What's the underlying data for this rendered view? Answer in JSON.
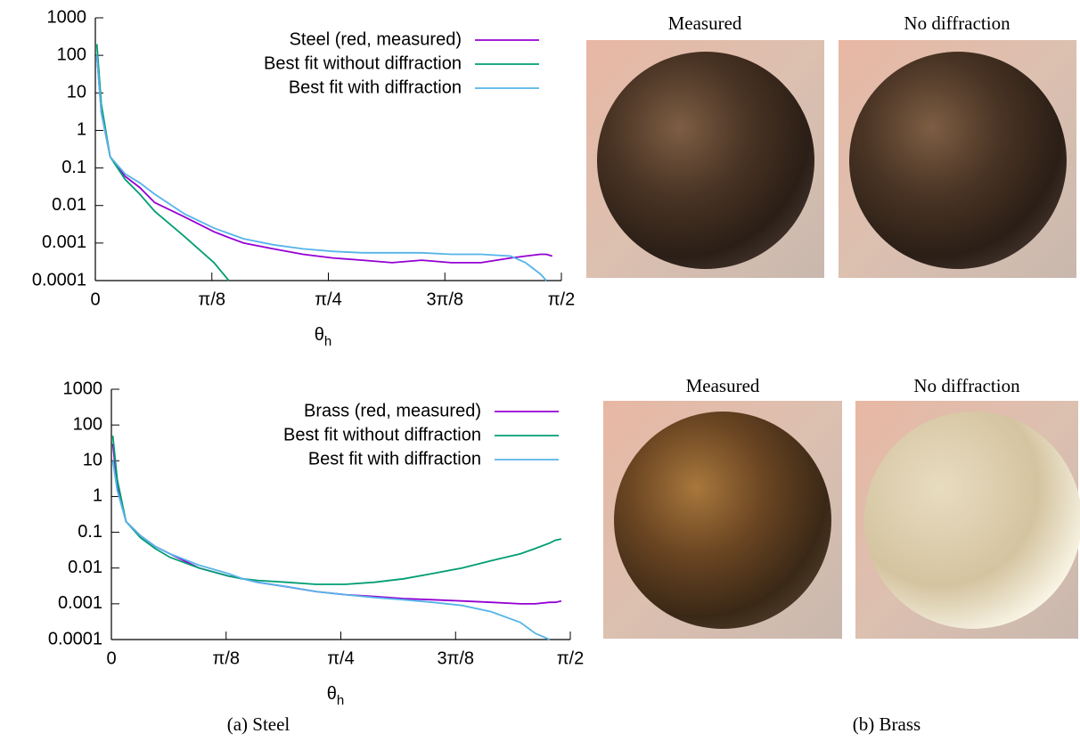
{
  "chart_data": [
    {
      "type": "line",
      "log_y": true,
      "legend": "top-right",
      "xlabel": "θ",
      "xlabel_sub": "h",
      "xlim": [
        0,
        1.5708
      ],
      "ylim": [
        0.0001,
        1000
      ],
      "xticks": [
        0,
        {
          "value": 0.3927,
          "label": "π/8"
        },
        {
          "value": 0.7854,
          "label": "π/4"
        },
        {
          "value": 1.1781,
          "label": "3π/8"
        },
        {
          "value": 1.5708,
          "label": "π/2"
        }
      ],
      "yticks": [
        0.0001,
        0.001,
        0.01,
        0.1,
        1,
        10,
        100,
        1000
      ],
      "x": [
        0.005,
        0.02,
        0.05,
        0.1,
        0.15,
        0.2,
        0.3,
        0.4,
        0.45,
        0.5,
        0.6,
        0.7,
        0.8,
        0.9,
        1.0,
        1.1,
        1.2,
        1.3,
        1.4,
        1.45,
        1.5,
        1.52,
        1.54
      ],
      "series": [
        {
          "name": "Steel (red, measured)",
          "color": "#9400d3",
          "values": [
            100,
            3,
            0.2,
            0.06,
            0.03,
            0.012,
            0.005,
            0.002,
            0.0014,
            0.001,
            0.0007,
            0.0005,
            0.0004,
            0.00035,
            0.0003,
            0.00035,
            0.0003,
            0.0003,
            0.0004,
            0.00045,
            0.0005,
            0.0005,
            0.00045
          ]
        },
        {
          "name": "Best fit without diffraction",
          "color": "#009e73",
          "values": [
            200,
            5,
            0.2,
            0.05,
            0.02,
            0.007,
            0.0015,
            0.0003,
            0.0001,
            null,
            null,
            null,
            null,
            null,
            null,
            null,
            null,
            null,
            null,
            null,
            null,
            null,
            null
          ]
        },
        {
          "name": "Best fit with diffraction",
          "color": "#56b4e9",
          "values": [
            100,
            3,
            0.2,
            0.07,
            0.04,
            0.02,
            0.006,
            0.0025,
            0.0018,
            0.0013,
            0.0009,
            0.0007,
            0.0006,
            0.00055,
            0.00055,
            0.00055,
            0.0005,
            0.0005,
            0.00045,
            0.0003,
            0.00015,
            0.0001,
            null
          ]
        }
      ]
    },
    {
      "type": "line",
      "log_y": true,
      "legend": "top-right",
      "xlabel": "θ",
      "xlabel_sub": "h",
      "xlim": [
        0,
        1.5708
      ],
      "ylim": [
        0.0001,
        1000
      ],
      "xticks": [
        0,
        {
          "value": 0.3927,
          "label": "π/8"
        },
        {
          "value": 0.7854,
          "label": "π/4"
        },
        {
          "value": 1.1781,
          "label": "3π/8"
        },
        {
          "value": 1.5708,
          "label": "π/2"
        }
      ],
      "yticks": [
        0.0001,
        0.001,
        0.01,
        0.1,
        1,
        10,
        100,
        1000
      ],
      "x": [
        0.005,
        0.02,
        0.05,
        0.1,
        0.15,
        0.2,
        0.3,
        0.4,
        0.45,
        0.5,
        0.6,
        0.7,
        0.8,
        0.9,
        1.0,
        1.1,
        1.2,
        1.3,
        1.4,
        1.45,
        1.5,
        1.52,
        1.54
      ],
      "series": [
        {
          "name": "Brass (red, measured)",
          "color": "#9400d3",
          "values": [
            30,
            2,
            0.2,
            0.08,
            0.04,
            0.025,
            0.01,
            0.006,
            0.005,
            0.004,
            0.003,
            0.0022,
            0.0018,
            0.0016,
            0.0014,
            0.0013,
            0.0012,
            0.0011,
            0.001,
            0.001,
            0.0011,
            0.0011,
            0.0012
          ]
        },
        {
          "name": "Best fit without diffraction",
          "color": "#009e73",
          "values": [
            50,
            3,
            0.2,
            0.07,
            0.035,
            0.02,
            0.01,
            0.006,
            0.005,
            0.0045,
            0.004,
            0.0035,
            0.0035,
            0.004,
            0.005,
            0.007,
            0.01,
            0.016,
            0.025,
            0.035,
            0.05,
            0.06,
            0.065
          ]
        },
        {
          "name": "Best fit with diffraction",
          "color": "#56b4e9",
          "values": [
            10,
            1.5,
            0.2,
            0.08,
            0.04,
            0.025,
            0.012,
            0.007,
            0.005,
            0.004,
            0.003,
            0.0022,
            0.0018,
            0.0015,
            0.0013,
            0.0011,
            0.0009,
            0.0006,
            0.0003,
            0.00015,
            0.0001,
            null,
            null
          ]
        }
      ]
    }
  ],
  "render_labels": [
    [
      "Measured",
      "No diffraction"
    ],
    [
      "Measured",
      "No diffraction"
    ]
  ],
  "captions": [
    "(a) Steel",
    "(b) Brass"
  ]
}
